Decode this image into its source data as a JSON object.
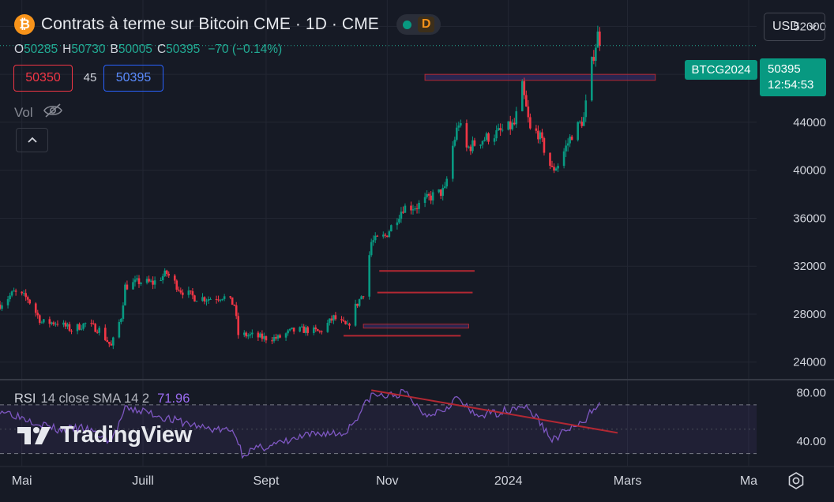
{
  "header": {
    "coin_symbol": "₿",
    "title": "Contrats à terme sur Bitcoin CME · 1D · CME",
    "interval_badge": "D"
  },
  "ohlc": {
    "o_label": "O",
    "o_value": "50285",
    "h_label": "H",
    "h_value": "50730",
    "l_label": "B",
    "l_value": "50005",
    "c_label": "C",
    "c_value": "50395",
    "change": "−70 (−0.14%)"
  },
  "trade": {
    "bid": "50350",
    "spread": "45",
    "ask": "50395"
  },
  "volume": {
    "label": "Vol",
    "icon": "eye-crossed-icon"
  },
  "collapse": {
    "icon": "chevron-up-icon"
  },
  "currency": {
    "value": "USD"
  },
  "last_price": {
    "symbol": "BTCG2024",
    "price": "50395",
    "countdown": "12:54:53"
  },
  "rsi": {
    "name": "RSI",
    "params": "14 close SMA 14 2",
    "value": "71.96"
  },
  "watermark": {
    "text": "TradingView"
  },
  "settings": {
    "icon": "gear-icon"
  },
  "colors": {
    "up": "#089981",
    "down": "#f23645",
    "rsi": "#7e57c2",
    "background": "#161a25",
    "trendline": "#b22833"
  },
  "chart_data": {
    "type": "candlestick",
    "title": "Contrats à terme sur Bitcoin CME · 1D · CME",
    "ylim": [
      22600,
      54200
    ],
    "y_ticks": [
      24000,
      28000,
      32000,
      36000,
      40000,
      44000,
      48000,
      52000
    ],
    "x_ticks": [
      {
        "label": "Mai",
        "date": "2023-05-01"
      },
      {
        "label": "Juill",
        "date": "2023-07-01"
      },
      {
        "label": "Sept",
        "date": "2023-09-01"
      },
      {
        "label": "Nov",
        "date": "2023-11-01"
      },
      {
        "label": "2024",
        "date": "2024-01-01"
      },
      {
        "label": "Mars",
        "date": "2024-03-01"
      },
      {
        "label": "Ma",
        "date": "2024-05-01"
      }
    ],
    "x_range": [
      "2023-04-20",
      "2024-05-05"
    ],
    "last_price": 50395,
    "close_path": [
      [
        "2023-04-20",
        28800
      ],
      [
        "2023-04-27",
        29800
      ],
      [
        "2023-05-04",
        29300
      ],
      [
        "2023-05-11",
        27300
      ],
      [
        "2023-05-19",
        27300
      ],
      [
        "2023-05-26",
        26700
      ],
      [
        "2023-06-02",
        27200
      ],
      [
        "2023-06-09",
        26700
      ],
      [
        "2023-06-15",
        25300
      ],
      [
        "2023-06-20",
        27800
      ],
      [
        "2023-06-22",
        30300
      ],
      [
        "2023-06-29",
        30700
      ],
      [
        "2023-07-06",
        30600
      ],
      [
        "2023-07-13",
        31400
      ],
      [
        "2023-07-20",
        30000
      ],
      [
        "2023-07-27",
        29400
      ],
      [
        "2023-08-03",
        29300
      ],
      [
        "2023-08-10",
        29500
      ],
      [
        "2023-08-16",
        28800
      ],
      [
        "2023-08-18",
        26300
      ],
      [
        "2023-08-25",
        26200
      ],
      [
        "2023-08-31",
        26000
      ],
      [
        "2023-09-07",
        26000
      ],
      [
        "2023-09-14",
        26600
      ],
      [
        "2023-09-21",
        26700
      ],
      [
        "2023-09-28",
        26500
      ],
      [
        "2023-10-05",
        27700
      ],
      [
        "2023-10-12",
        26900
      ],
      [
        "2023-10-16",
        28600
      ],
      [
        "2023-10-20",
        29800
      ],
      [
        "2023-10-24",
        34000
      ],
      [
        "2023-10-31",
        34500
      ],
      [
        "2023-11-09",
        36900
      ],
      [
        "2023-11-16",
        37000
      ],
      [
        "2023-11-23",
        37800
      ],
      [
        "2023-11-30",
        38300
      ],
      [
        "2023-12-04",
        42000
      ],
      [
        "2023-12-07",
        44000
      ],
      [
        "2023-12-11",
        41800
      ],
      [
        "2023-12-18",
        42500
      ],
      [
        "2023-12-28",
        43200
      ],
      [
        "2024-01-04",
        43800
      ],
      [
        "2024-01-08",
        46900
      ],
      [
        "2024-01-12",
        43300
      ],
      [
        "2024-01-16",
        43100
      ],
      [
        "2024-01-23",
        40000
      ],
      [
        "2024-01-26",
        40500
      ],
      [
        "2024-02-02",
        43000
      ],
      [
        "2024-02-08",
        44300
      ],
      [
        "2024-02-12",
        48900
      ],
      [
        "2024-02-15",
        51300
      ],
      [
        "2024-02-16",
        50400
      ]
    ],
    "zones": [
      {
        "from": "2023-11-20",
        "to": "2024-03-15",
        "low": 47500,
        "high": 48000,
        "style": "box"
      },
      {
        "from": "2023-10-28",
        "to": "2023-12-15",
        "price": 31600,
        "style": "line"
      },
      {
        "from": "2023-10-27",
        "to": "2023-12-14",
        "price": 29800,
        "style": "line"
      },
      {
        "from": "2023-10-20",
        "to": "2023-12-12",
        "price": 27000,
        "style": "box"
      },
      {
        "from": "2023-10-10",
        "to": "2023-12-08",
        "price": 26200,
        "style": "line"
      }
    ],
    "rsi": {
      "ylim": [
        20,
        90
      ],
      "y_ticks": [
        80,
        40
      ],
      "bands": [
        70,
        30
      ],
      "value": 71.96,
      "path": [
        [
          "2023-04-20",
          66
        ],
        [
          "2023-05-01",
          60
        ],
        [
          "2023-05-10",
          55
        ],
        [
          "2023-05-20",
          49
        ],
        [
          "2023-06-01",
          51
        ],
        [
          "2023-06-15",
          40
        ],
        [
          "2023-06-22",
          66
        ],
        [
          "2023-07-01",
          65
        ],
        [
          "2023-07-15",
          58
        ],
        [
          "2023-08-01",
          51
        ],
        [
          "2023-08-16",
          48
        ],
        [
          "2023-08-20",
          30
        ],
        [
          "2023-09-01",
          36
        ],
        [
          "2023-09-10",
          39
        ],
        [
          "2023-09-20",
          44
        ],
        [
          "2023-10-01",
          47
        ],
        [
          "2023-10-10",
          46
        ],
        [
          "2023-10-16",
          58
        ],
        [
          "2023-10-24",
          78
        ],
        [
          "2023-11-01",
          77
        ],
        [
          "2023-11-10",
          80
        ],
        [
          "2023-11-20",
          62
        ],
        [
          "2023-11-30",
          67
        ],
        [
          "2023-12-06",
          76
        ],
        [
          "2023-12-15",
          61
        ],
        [
          "2023-12-28",
          64
        ],
        [
          "2024-01-08",
          70
        ],
        [
          "2024-01-15",
          60
        ],
        [
          "2024-01-23",
          41
        ],
        [
          "2024-02-01",
          51
        ],
        [
          "2024-02-08",
          54
        ],
        [
          "2024-02-12",
          66
        ],
        [
          "2024-02-16",
          72
        ]
      ],
      "trendline": [
        [
          "2023-10-24",
          82
        ],
        [
          "2024-02-25",
          47
        ]
      ]
    }
  }
}
